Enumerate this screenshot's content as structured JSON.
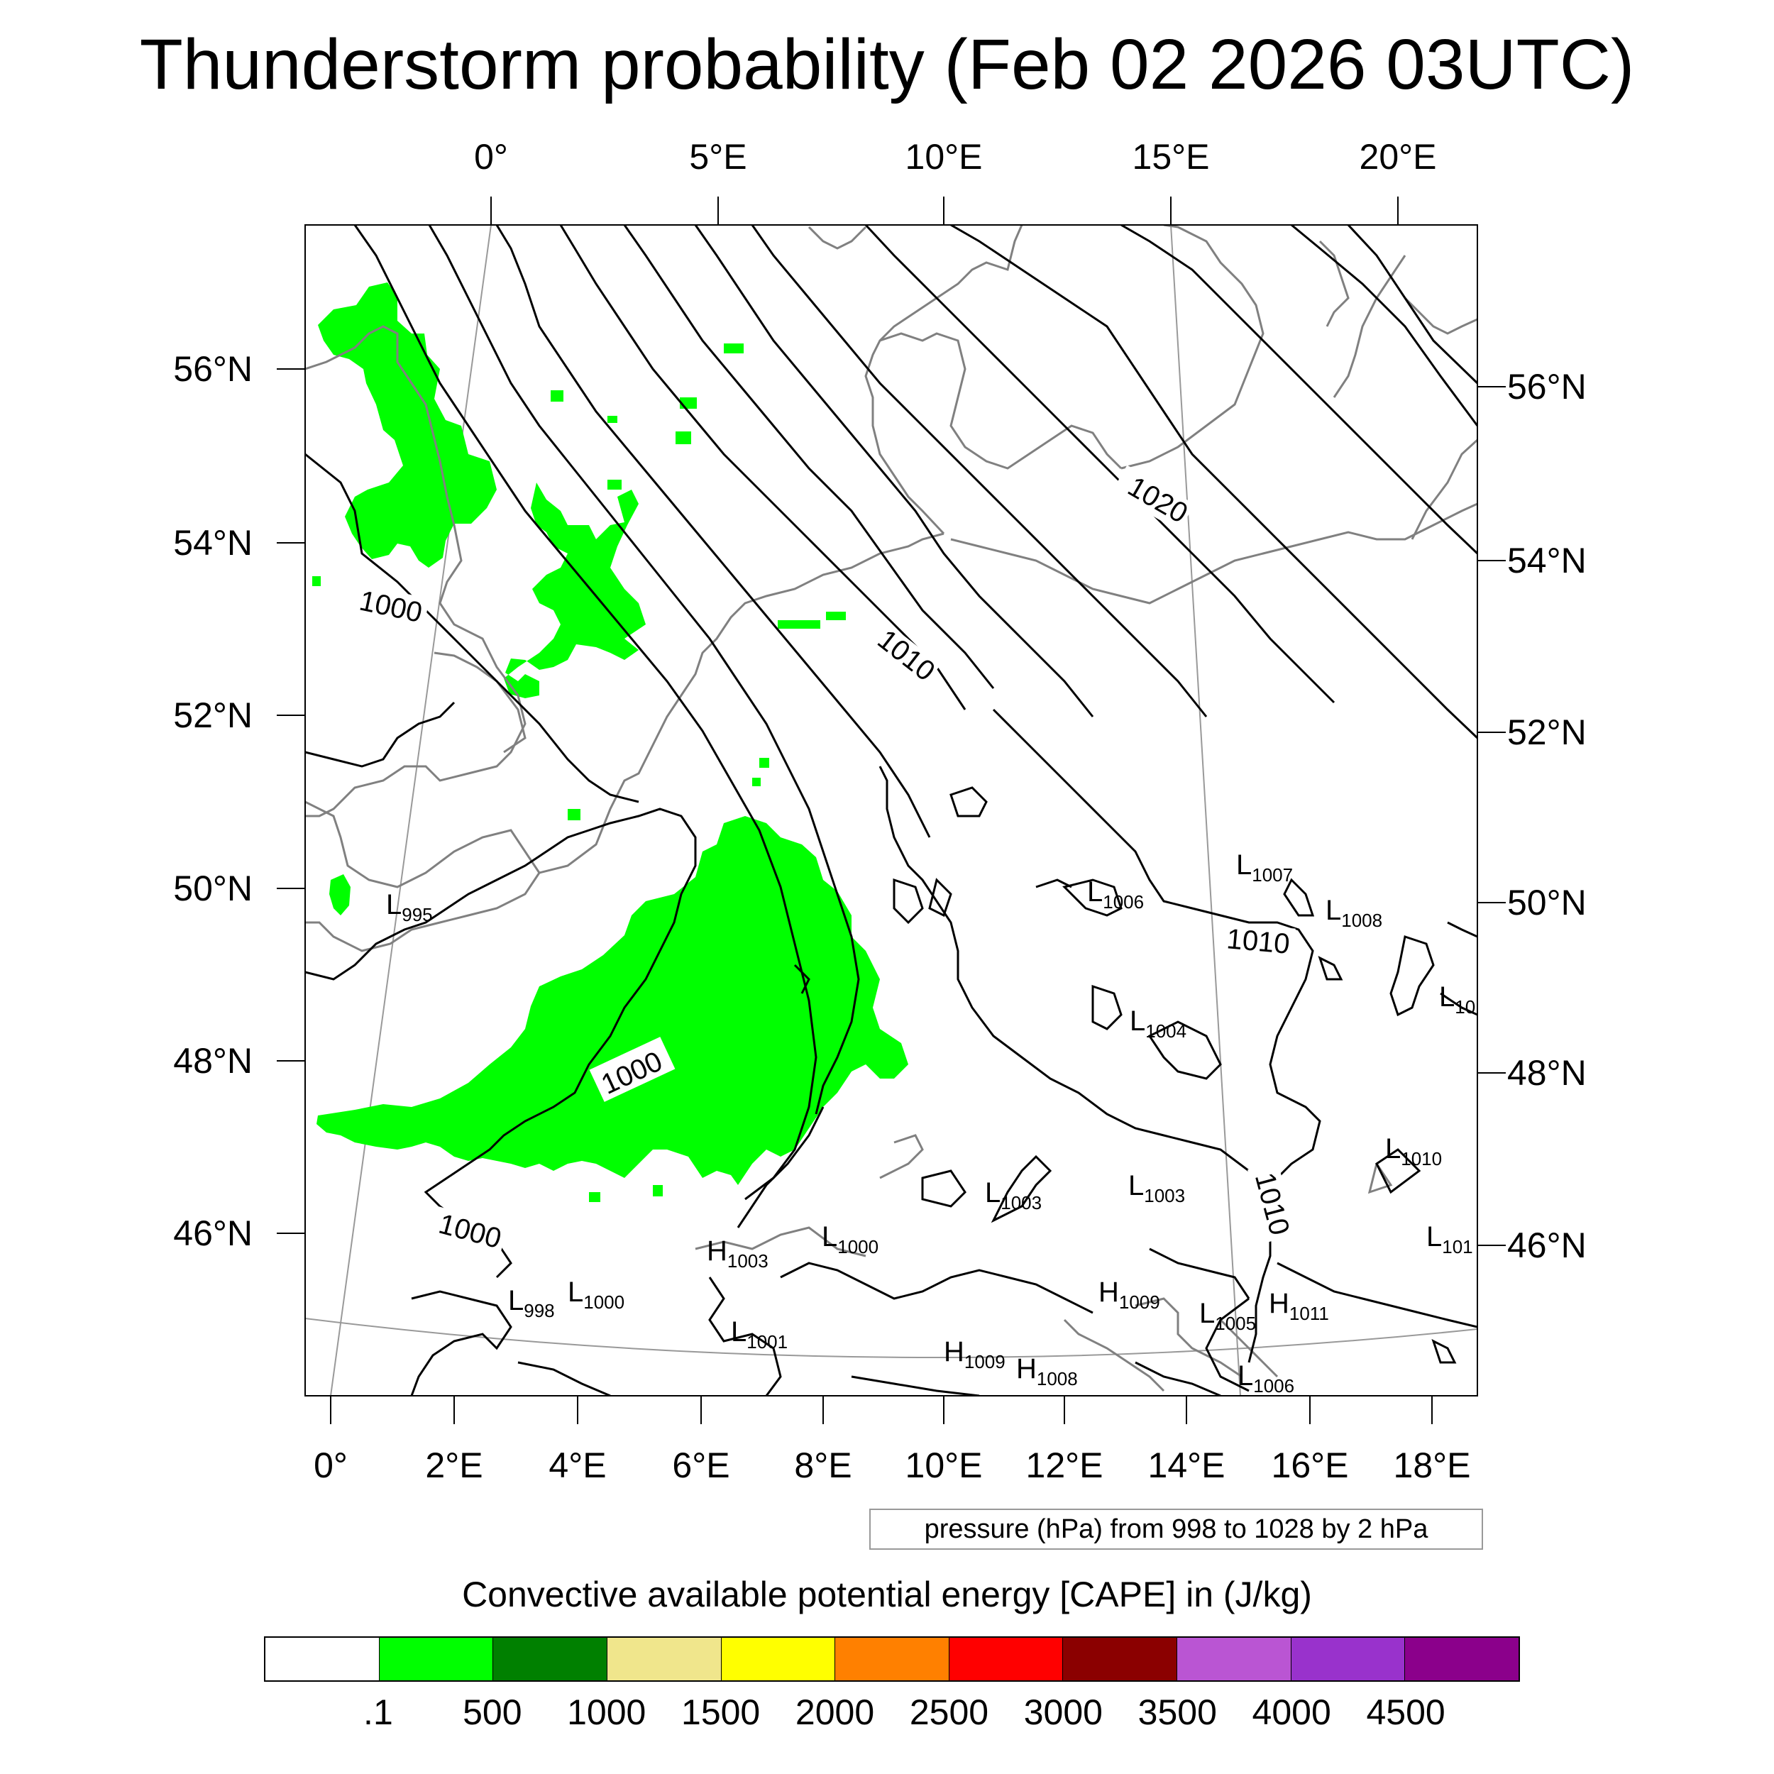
{
  "title": "Thunderstorm probability (Feb 02 2026 03UTC)",
  "top_axis_labels": [
    "0°",
    "5°E",
    "10°E",
    "15°E",
    "20°E"
  ],
  "bottom_axis_labels": [
    "0°",
    "2°E",
    "4°E",
    "6°E",
    "8°E",
    "10°E",
    "12°E",
    "14°E",
    "16°E",
    "18°E"
  ],
  "left_axis_labels": [
    "56°N",
    "54°N",
    "52°N",
    "50°N",
    "48°N",
    "46°N"
  ],
  "right_axis_labels": [
    "56°N",
    "54°N",
    "52°N",
    "50°N",
    "48°N",
    "46°N"
  ],
  "contour_labels": [
    "1000",
    "1010",
    "1020",
    "1000",
    "1000",
    "1010",
    "1010"
  ],
  "pressure_centers": [
    {
      "letter": "L",
      "value": "995"
    },
    {
      "letter": "L",
      "value": "1007"
    },
    {
      "letter": "L",
      "value": "1006"
    },
    {
      "letter": "L",
      "value": "1008"
    },
    {
      "letter": "L",
      "value": "1004"
    },
    {
      "letter": "L",
      "value": "10"
    },
    {
      "letter": "L",
      "value": "1010"
    },
    {
      "letter": "L",
      "value": "1003"
    },
    {
      "letter": "L",
      "value": "1003"
    },
    {
      "letter": "L",
      "value": "101"
    },
    {
      "letter": "H",
      "value": "1003"
    },
    {
      "letter": "L",
      "value": "1000"
    },
    {
      "letter": "H",
      "value": "1009"
    },
    {
      "letter": "L",
      "value": "998"
    },
    {
      "letter": "L",
      "value": "1000"
    },
    {
      "letter": "L",
      "value": "1005"
    },
    {
      "letter": "H",
      "value": "1011"
    },
    {
      "letter": "L",
      "value": "1001"
    },
    {
      "letter": "H",
      "value": "1009"
    },
    {
      "letter": "H",
      "value": "1008"
    },
    {
      "letter": "L",
      "value": "1006"
    }
  ],
  "pressure_note": "pressure (hPa) from 998 to 1028 by 2 hPa",
  "colorbar": {
    "title": "Convective available potential energy [CAPE] in (J/kg)",
    "colors": [
      "#ffffff",
      "#00ff00",
      "#008000",
      "#f0e68c",
      "#ffff00",
      "#ff8000",
      "#ff0000",
      "#8b0000",
      "#ba55d3",
      "#9932cc",
      "#8b008b"
    ],
    "labels": [
      ".1",
      "500",
      "1000",
      "1500",
      "2000",
      "2500",
      "3000",
      "3500",
      "4000",
      "4500"
    ]
  },
  "cape_fill_color": "#00ff00"
}
